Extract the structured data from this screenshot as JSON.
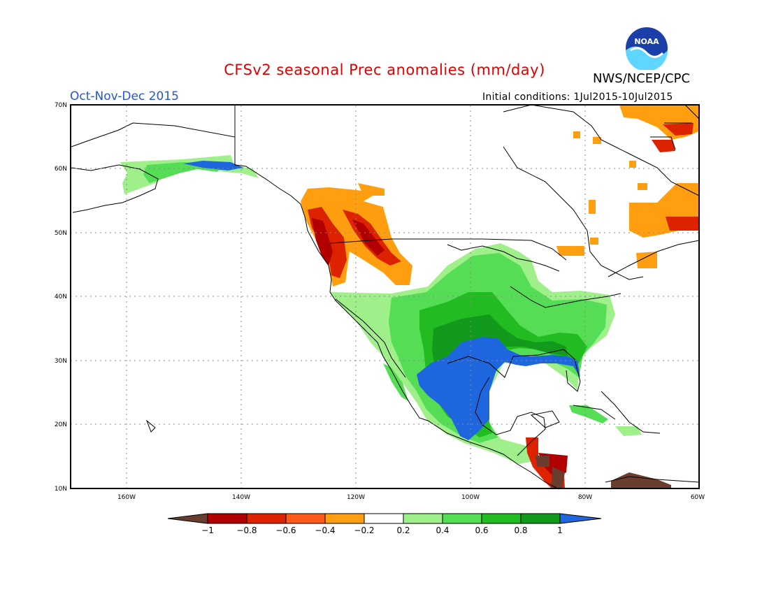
{
  "title": "CFSv2 seasonal Prec anomalies (mm/day)",
  "period": "Oct-Nov-Dec 2015",
  "initial_conditions": "Initial conditions: 1Jul2015-10Jul2015",
  "agency": "NWS/NCEP/CPC",
  "logo_text": "NOAA",
  "colors": {
    "title": "#e00000",
    "period": "#2255dd",
    "land_outline": "#000000",
    "grid": "#888888"
  },
  "map": {
    "lon_range": [
      -172,
      -60
    ],
    "lat_range": [
      10,
      70
    ],
    "lat_ticks": [
      "70N",
      "60N",
      "50N",
      "40N",
      "30N",
      "20N",
      "10N"
    ],
    "lon_ticks": [
      "160W",
      "140W",
      "120W",
      "100W",
      "80W",
      "60W"
    ],
    "grid": "dotted"
  },
  "legend": {
    "labels": [
      "-1",
      "-0.8",
      "-0.6",
      "-0.4",
      "-0.2",
      "0.2",
      "0.4",
      "0.6",
      "0.8",
      "1"
    ],
    "colors": [
      "#6b3d2e",
      "#b00000",
      "#dd2200",
      "#ff5a1a",
      "#ff9f10",
      "#ffffff",
      "#9ff08a",
      "#55dd55",
      "#22bb22",
      "#129a1c",
      "#1e66dd"
    ]
  }
}
